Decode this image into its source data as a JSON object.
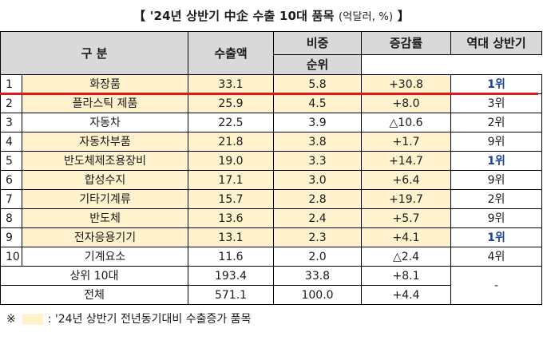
{
  "title": {
    "main": "【 '24년 상반기 中企 수출 10대 품목",
    "unit": "(억달러, %)",
    "close": "】"
  },
  "headers": {
    "category": "구   분",
    "exports": "수출액",
    "share": "비중",
    "change": "증감률",
    "rank_line1": "역대 상반기",
    "rank_line2": "순위"
  },
  "rows": [
    {
      "no": "1",
      "name": "화장품",
      "exports": "33.1",
      "share": "5.8",
      "change": "+30.8",
      "rank": "1위",
      "highlight": true,
      "top_rank": true
    },
    {
      "no": "2",
      "name": "플라스틱 제품",
      "exports": "25.9",
      "share": "4.5",
      "change": "+8.0",
      "rank": "3위",
      "highlight": true,
      "top_rank": false
    },
    {
      "no": "3",
      "name": "자동차",
      "exports": "22.5",
      "share": "3.9",
      "change": "△10.6",
      "rank": "2위",
      "highlight": false,
      "top_rank": false
    },
    {
      "no": "4",
      "name": "자동차부품",
      "exports": "21.8",
      "share": "3.8",
      "change": "+1.7",
      "rank": "9위",
      "highlight": true,
      "top_rank": false
    },
    {
      "no": "5",
      "name": "반도체제조용장비",
      "exports": "19.0",
      "share": "3.3",
      "change": "+14.7",
      "rank": "1위",
      "highlight": true,
      "top_rank": true
    },
    {
      "no": "6",
      "name": "합성수지",
      "exports": "17.1",
      "share": "3.0",
      "change": "+6.4",
      "rank": "9위",
      "highlight": true,
      "top_rank": false
    },
    {
      "no": "7",
      "name": "기타기계류",
      "exports": "15.7",
      "share": "2.8",
      "change": "+19.7",
      "rank": "2위",
      "highlight": true,
      "top_rank": false
    },
    {
      "no": "8",
      "name": "반도체",
      "exports": "13.6",
      "share": "2.4",
      "change": "+5.7",
      "rank": "9위",
      "highlight": true,
      "top_rank": false
    },
    {
      "no": "9",
      "name": "전자응용기기",
      "exports": "13.1",
      "share": "2.3",
      "change": "+4.1",
      "rank": "1위",
      "highlight": true,
      "top_rank": true
    },
    {
      "no": "10",
      "name": "기계요소",
      "exports": "11.6",
      "share": "2.0",
      "change": "△2.4",
      "rank": "4위",
      "highlight": false,
      "top_rank": false
    }
  ],
  "summary": [
    {
      "name": "상위 10대",
      "exports": "193.4",
      "share": "33.8",
      "change": "+8.1"
    },
    {
      "name": "전체",
      "exports": "571.1",
      "share": "100.0",
      "change": "+4.4"
    }
  ],
  "summary_rank": "-",
  "note": {
    "mark": "※",
    "text": ": '24년 상반기 전년동기대비 수출증가 품목"
  },
  "colors": {
    "highlight": "#fff2cc",
    "header": "#d9d9d9",
    "rank1": "#1f3fa0",
    "red_line": "#e01818"
  }
}
